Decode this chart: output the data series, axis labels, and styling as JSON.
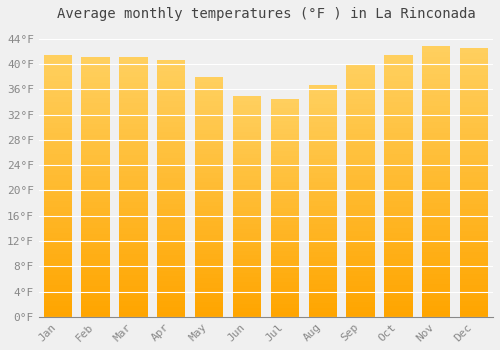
{
  "title": "Average monthly temperatures (°F ) in La Rinconada",
  "months": [
    "Jan",
    "Feb",
    "Mar",
    "Apr",
    "May",
    "Jun",
    "Jul",
    "Aug",
    "Sep",
    "Oct",
    "Nov",
    "Dec"
  ],
  "values": [
    41.5,
    41.2,
    41.2,
    40.6,
    38.0,
    34.9,
    34.5,
    36.7,
    40.1,
    41.5,
    42.8,
    42.6
  ],
  "ylim": [
    0,
    46
  ],
  "yticks": [
    0,
    4,
    8,
    12,
    16,
    20,
    24,
    28,
    32,
    36,
    40,
    44
  ],
  "bar_color_bottom": "#FFA500",
  "bar_color_top": "#FFD966",
  "background_color": "#F0F0F0",
  "grid_color": "#FFFFFF",
  "title_fontsize": 10,
  "tick_fontsize": 8,
  "bar_width": 0.75
}
